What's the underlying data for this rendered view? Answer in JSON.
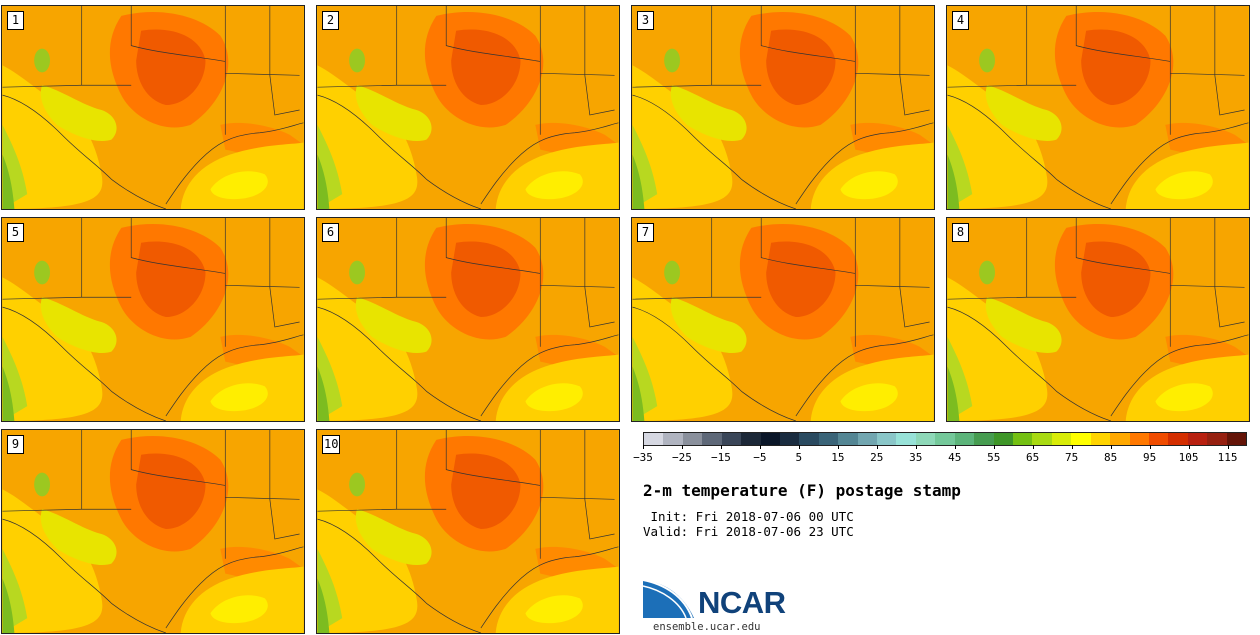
{
  "panels": [
    {
      "label": "1"
    },
    {
      "label": "2"
    },
    {
      "label": "3"
    },
    {
      "label": "4"
    },
    {
      "label": "5"
    },
    {
      "label": "6"
    },
    {
      "label": "7"
    },
    {
      "label": "8"
    },
    {
      "label": "9"
    },
    {
      "label": "10"
    }
  ],
  "colorbar": {
    "colors": [
      "#d6d8e2",
      "#b0b4c0",
      "#8a909c",
      "#5e6878",
      "#3a4658",
      "#1c2838",
      "#0a1628",
      "#1a2c40",
      "#2a4a60",
      "#3a6478",
      "#548694",
      "#72a6b0",
      "#8ac6c8",
      "#98e2d8",
      "#8ed8b8",
      "#74c89a",
      "#5cb47a",
      "#469c50",
      "#3e9628",
      "#74c012",
      "#a8da12",
      "#d8ec08",
      "#ffff00",
      "#ffd400",
      "#ffa800",
      "#ff7800",
      "#f04c00",
      "#d42e00",
      "#b82010",
      "#962010",
      "#641408"
    ],
    "tick_labels": [
      "−35",
      "−25",
      "−15",
      "−5",
      "5",
      "15",
      "25",
      "35",
      "45",
      "55",
      "65",
      "75",
      "85",
      "95",
      "105",
      "115"
    ]
  },
  "title": "2-m temperature (F) postage stamp",
  "init": " Init: Fri 2018-07-06 00 UTC",
  "valid": "Valid: Fri 2018-07-06 23 UTC",
  "logo": {
    "text": "NCAR",
    "color": "#10427a",
    "swoosh_color": "#1c6fb8"
  },
  "url": "ensemble.ucar.edu"
}
